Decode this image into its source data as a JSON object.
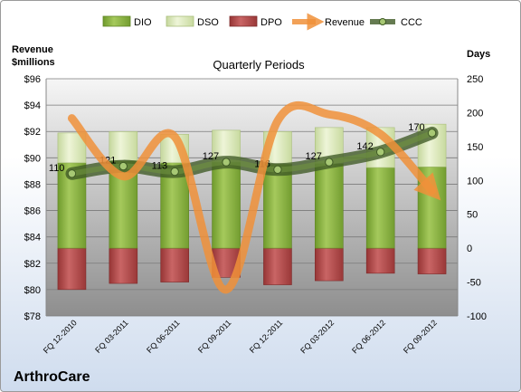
{
  "chart_data": {
    "type": "bar",
    "title": "Quarterly Periods",
    "company": "ArthroCare",
    "y_left_label_line1": "Revenue",
    "y_left_label_line2": "$millions",
    "y_right_label": "Days",
    "categories": [
      "FQ 12-2010",
      "FQ 03-2011",
      "FQ 06-2011",
      "FQ 09-2011",
      "FQ 12-2011",
      "FQ 03-2012",
      "FQ 06-2012",
      "FQ 09-2012"
    ],
    "y_left": {
      "min": 78,
      "max": 96,
      "step": 2,
      "prefix": "$"
    },
    "y_right": {
      "min": -100,
      "max": 250,
      "step": 50
    },
    "series": [
      {
        "name": "DIO",
        "axis": "right",
        "color": "#8db33f",
        "values": [
          126,
          129,
          126,
          127,
          124,
          125,
          119,
          120
        ]
      },
      {
        "name": "DSO",
        "axis": "right",
        "color": "#d7e4bc",
        "values": [
          44,
          43,
          42,
          47,
          48,
          53,
          59,
          63
        ]
      },
      {
        "name": "DPO",
        "axis": "right",
        "color": "#b54a4a",
        "values": [
          -61,
          -52,
          -50,
          -43,
          -54,
          -48,
          -37,
          -38
        ]
      },
      {
        "name": "Revenue",
        "axis": "left",
        "color": "#f0913a",
        "values": [
          93.0,
          88.6,
          91.6,
          80.0,
          92.8,
          93.3,
          91.8,
          87.5
        ]
      },
      {
        "name": "CCC",
        "axis": "right",
        "color": "#5a7a3a",
        "values": [
          110,
          121,
          113,
          127,
          116,
          127,
          142,
          170
        ]
      }
    ],
    "grid": true,
    "legend": "top"
  }
}
